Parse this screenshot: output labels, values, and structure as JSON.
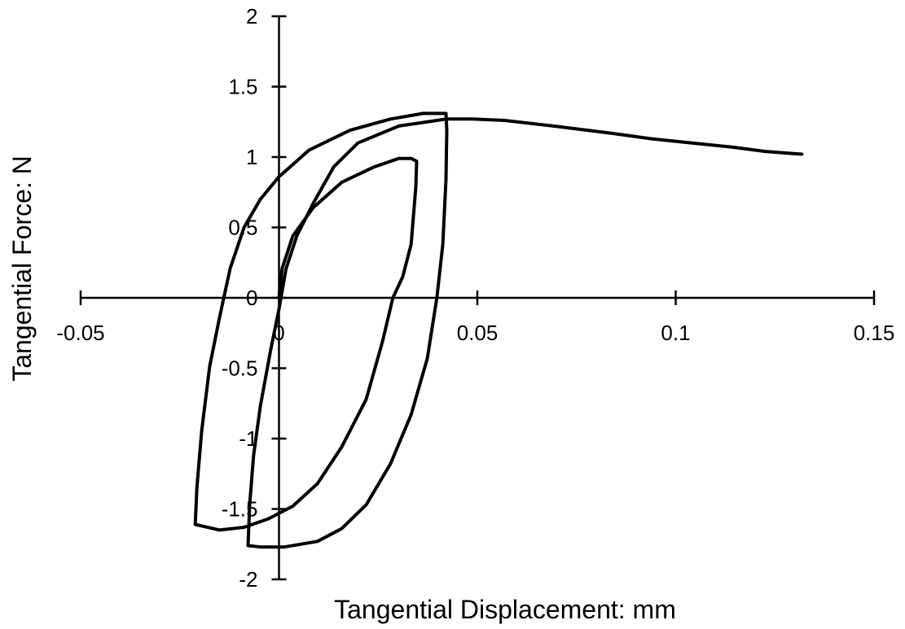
{
  "chart_data": {
    "type": "line",
    "x_label": "Tangential Displacement: mm",
    "y_label": "Tangential Force: N",
    "xlim": [
      -0.05,
      0.15
    ],
    "ylim": [
      -2,
      2
    ],
    "xticks": [
      -0.05,
      0,
      0.05,
      0.1,
      0.15
    ],
    "yticks": [
      -2,
      -1.5,
      -1,
      -0.5,
      0,
      0.5,
      1,
      1.5,
      2
    ],
    "x": [
      0,
      0.0008,
      0.0035,
      0.0086,
      0.0158,
      0.024,
      0.0302,
      0.0333,
      0.0347,
      0.0345,
      0.0333,
      0.0312,
      0.0287,
      0.0261,
      0.022,
      0.0158,
      0.0097,
      0.0035,
      -0.0027,
      -0.0088,
      -0.015,
      -0.0211,
      -0.0207,
      -0.0195,
      -0.0175,
      -0.015,
      -0.0123,
      -0.0088,
      -0.0047,
      0,
      0.0076,
      0.0179,
      0.0281,
      0.0363,
      0.0421,
      0.0423,
      0.0421,
      0.0413,
      0.0398,
      0.0374,
      0.0333,
      0.0281,
      0.022,
      0.0158,
      0.0097,
      0.0014,
      -0.0047,
      -0.0078,
      -0.0074,
      -0.0064,
      -0.0047,
      -0.0021,
      0,
      0.0018,
      0.0045,
      0.0086,
      0.0138,
      0.0199,
      0.0302,
      0.0421,
      0.0487,
      0.0569,
      0.0692,
      0.0836,
      0.0938,
      0.1041,
      0.1144,
      0.1226,
      0.1318
    ],
    "series": [
      {
        "color": "#000000",
        "values": [
          0,
          0.21,
          0.44,
          0.64,
          0.82,
          0.93,
          0.99,
          0.99,
          0.97,
          0.79,
          0.38,
          0.15,
          0,
          -0.31,
          -0.72,
          -1.06,
          -1.32,
          -1.48,
          -1.57,
          -1.63,
          -1.65,
          -1.61,
          -1.35,
          -0.95,
          -0.49,
          -0.14,
          0.21,
          0.5,
          0.7,
          0.86,
          1.05,
          1.19,
          1.27,
          1.31,
          1.31,
          1.19,
          0.84,
          0.38,
          0,
          -0.43,
          -0.83,
          -1.18,
          -1.47,
          -1.64,
          -1.73,
          -1.77,
          -1.77,
          -1.76,
          -1.47,
          -1.12,
          -0.77,
          -0.37,
          -0.08,
          0.21,
          0.44,
          0.67,
          0.93,
          1.1,
          1.22,
          1.27,
          1.27,
          1.26,
          1.22,
          1.17,
          1.13,
          1.1,
          1.07,
          1.04,
          1.02
        ]
      }
    ]
  }
}
